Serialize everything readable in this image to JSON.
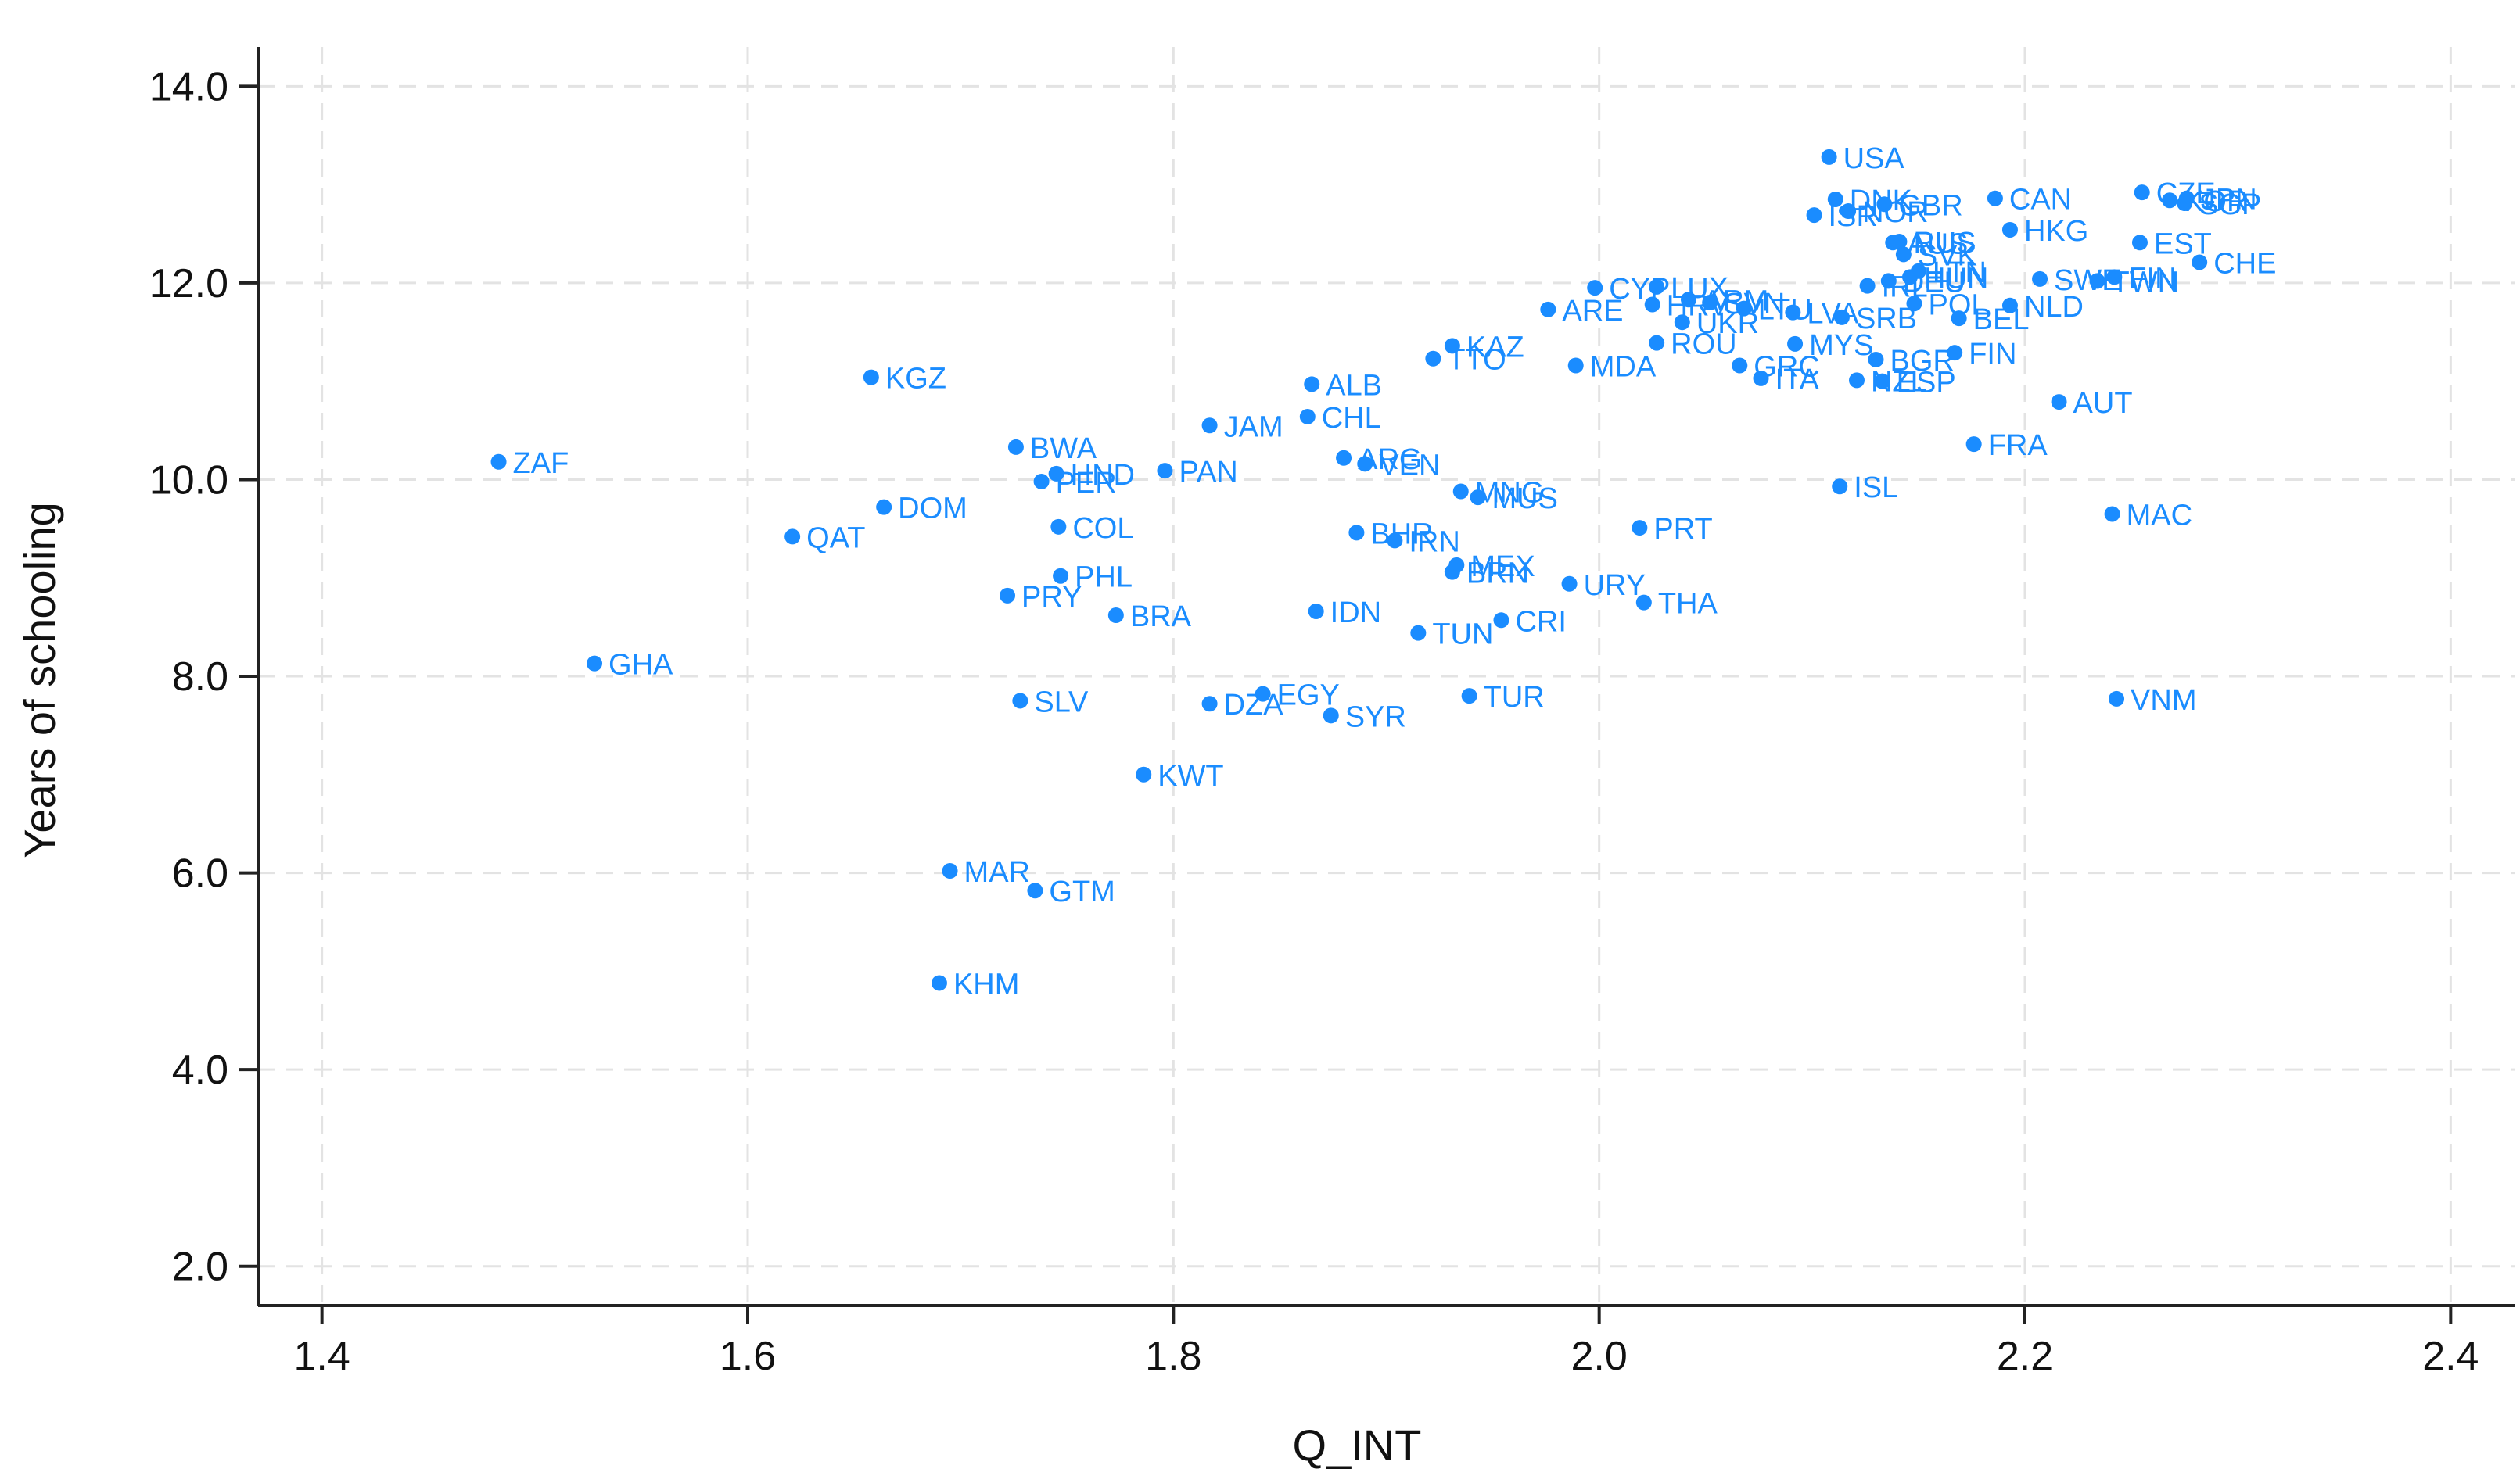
{
  "chart_data": {
    "type": "scatter",
    "xlabel": "Q_INT",
    "ylabel": "Years of schooling",
    "xlim": [
      1.37,
      2.43
    ],
    "ylim": [
      1.6,
      14.4
    ],
    "xticks": [
      1.4,
      1.6,
      1.8,
      2.0,
      2.2,
      2.4
    ],
    "xtick_labels": [
      "1.4",
      "1.6",
      "1.8",
      "2.0",
      "2.2",
      "2.4"
    ],
    "yticks": [
      2,
      4,
      6,
      8,
      10,
      12,
      14
    ],
    "ytick_labels": [
      "2.0",
      "4.0",
      "6.0",
      "8.0",
      "10.0",
      "12.0",
      "14.0"
    ],
    "grid": true,
    "marker_color": "#1a8cff",
    "points": [
      {
        "label": "ZAF",
        "x": 1.483,
        "y": 10.18
      },
      {
        "label": "GHA",
        "x": 1.528,
        "y": 8.13
      },
      {
        "label": "QAT",
        "x": 1.621,
        "y": 9.42
      },
      {
        "label": "KGZ",
        "x": 1.658,
        "y": 11.04
      },
      {
        "label": "DOM",
        "x": 1.664,
        "y": 9.72
      },
      {
        "label": "KHM",
        "x": 1.69,
        "y": 4.88
      },
      {
        "label": "MAR",
        "x": 1.695,
        "y": 6.02
      },
      {
        "label": "PRY",
        "x": 1.722,
        "y": 8.82
      },
      {
        "label": "BWA",
        "x": 1.726,
        "y": 10.33
      },
      {
        "label": "SLV",
        "x": 1.728,
        "y": 7.75
      },
      {
        "label": "GTM",
        "x": 1.735,
        "y": 5.82
      },
      {
        "label": "PER",
        "x": 1.738,
        "y": 9.98
      },
      {
        "label": "HND",
        "x": 1.745,
        "y": 10.06
      },
      {
        "label": "COL",
        "x": 1.746,
        "y": 9.52
      },
      {
        "label": "PHL",
        "x": 1.747,
        "y": 9.02
      },
      {
        "label": "BRA",
        "x": 1.773,
        "y": 8.62
      },
      {
        "label": "KWT",
        "x": 1.786,
        "y": 7.0
      },
      {
        "label": "PAN",
        "x": 1.796,
        "y": 10.09
      },
      {
        "label": "JAM",
        "x": 1.817,
        "y": 10.55
      },
      {
        "label": "DZA",
        "x": 1.817,
        "y": 7.72
      },
      {
        "label": "EGY",
        "x": 1.842,
        "y": 7.82
      },
      {
        "label": "CHL",
        "x": 1.863,
        "y": 10.64
      },
      {
        "label": "ALB",
        "x": 1.865,
        "y": 10.97
      },
      {
        "label": "IDN",
        "x": 1.867,
        "y": 8.66
      },
      {
        "label": "SYR",
        "x": 1.874,
        "y": 7.6
      },
      {
        "label": "ARG",
        "x": 1.88,
        "y": 10.22
      },
      {
        "label": "BHR",
        "x": 1.886,
        "y": 9.46
      },
      {
        "label": "VEN",
        "x": 1.89,
        "y": 10.16
      },
      {
        "label": "IRN",
        "x": 1.904,
        "y": 9.38
      },
      {
        "label": "TUN",
        "x": 1.915,
        "y": 8.44
      },
      {
        "label": "TTO",
        "x": 1.922,
        "y": 11.23
      },
      {
        "label": "KAZ",
        "x": 1.931,
        "y": 11.36
      },
      {
        "label": "BRN",
        "x": 1.931,
        "y": 9.06
      },
      {
        "label": "MEX",
        "x": 1.933,
        "y": 9.13
      },
      {
        "label": "MNG",
        "x": 1.935,
        "y": 9.88
      },
      {
        "label": "MUS",
        "x": 1.943,
        "y": 9.82
      },
      {
        "label": "TUR",
        "x": 1.939,
        "y": 7.8
      },
      {
        "label": "CRI",
        "x": 1.954,
        "y": 8.57
      },
      {
        "label": "ARE",
        "x": 1.976,
        "y": 11.73
      },
      {
        "label": "MDA",
        "x": 1.989,
        "y": 11.16
      },
      {
        "label": "URY",
        "x": 1.986,
        "y": 8.94
      },
      {
        "label": "CYP",
        "x": 1.998,
        "y": 11.95
      },
      {
        "label": "PRT",
        "x": 2.019,
        "y": 9.51
      },
      {
        "label": "THA",
        "x": 2.021,
        "y": 8.75
      },
      {
        "label": "ROU",
        "x": 2.027,
        "y": 11.39
      },
      {
        "label": "HRV",
        "x": 2.025,
        "y": 11.78
      },
      {
        "label": "LUX",
        "x": 2.027,
        "y": 11.96
      },
      {
        "label": "UKR",
        "x": 2.039,
        "y": 11.6
      },
      {
        "label": "ARM",
        "x": 2.042,
        "y": 11.83
      },
      {
        "label": "SVN",
        "x": 2.052,
        "y": 11.8
      },
      {
        "label": "GRC",
        "x": 2.066,
        "y": 11.16
      },
      {
        "label": "LTU",
        "x": 2.068,
        "y": 11.74
      },
      {
        "label": "ITA",
        "x": 2.076,
        "y": 11.03
      },
      {
        "label": "LVA",
        "x": 2.091,
        "y": 11.7
      },
      {
        "label": "MYS",
        "x": 2.092,
        "y": 11.38
      },
      {
        "label": "ISR",
        "x": 2.101,
        "y": 12.69
      },
      {
        "label": "USA",
        "x": 2.108,
        "y": 13.28
      },
      {
        "label": "DNK",
        "x": 2.111,
        "y": 12.85
      },
      {
        "label": "ISL",
        "x": 2.113,
        "y": 9.93
      },
      {
        "label": "SRB",
        "x": 2.114,
        "y": 11.65
      },
      {
        "label": "NOR",
        "x": 2.117,
        "y": 12.73
      },
      {
        "label": "NZL",
        "x": 2.121,
        "y": 11.01
      },
      {
        "label": "IRL",
        "x": 2.126,
        "y": 11.97
      },
      {
        "label": "BGR",
        "x": 2.13,
        "y": 11.22
      },
      {
        "label": "ESP",
        "x": 2.133,
        "y": 11.0
      },
      {
        "label": "GBR",
        "x": 2.134,
        "y": 12.8
      },
      {
        "label": "DEU",
        "x": 2.136,
        "y": 12.02
      },
      {
        "label": "AUS",
        "x": 2.138,
        "y": 12.41
      },
      {
        "label": "RUS",
        "x": 2.141,
        "y": 12.42
      },
      {
        "label": "SVK",
        "x": 2.143,
        "y": 12.29
      },
      {
        "label": "HUN",
        "x": 2.146,
        "y": 12.06
      },
      {
        "label": "LTN",
        "x": 2.15,
        "y": 12.12
      },
      {
        "label": "POL",
        "x": 2.148,
        "y": 11.79
      },
      {
        "label": "FIN",
        "x": 2.167,
        "y": 11.29
      },
      {
        "label": "BEL",
        "x": 2.169,
        "y": 11.64
      },
      {
        "label": "FRA",
        "x": 2.176,
        "y": 10.36
      },
      {
        "label": "CAN",
        "x": 2.186,
        "y": 12.86
      },
      {
        "label": "HKG",
        "x": 2.193,
        "y": 12.54
      },
      {
        "label": "NLD",
        "x": 2.193,
        "y": 11.77
      },
      {
        "label": "SWE",
        "x": 2.207,
        "y": 12.04
      },
      {
        "label": "AUT",
        "x": 2.216,
        "y": 10.79
      },
      {
        "label": "TWN",
        "x": 2.234,
        "y": 12.02
      },
      {
        "label": "FIN2",
        "x": 2.242,
        "y": 12.06
      },
      {
        "label": "MAC",
        "x": 2.241,
        "y": 9.65
      },
      {
        "label": "VNM",
        "x": 2.243,
        "y": 7.77
      },
      {
        "label": "EST",
        "x": 2.254,
        "y": 12.41
      },
      {
        "label": "CZE",
        "x": 2.255,
        "y": 12.92
      },
      {
        "label": "KOR",
        "x": 2.268,
        "y": 12.84
      },
      {
        "label": "SGP",
        "x": 2.275,
        "y": 12.81
      },
      {
        "label": "JPN",
        "x": 2.276,
        "y": 12.86
      },
      {
        "label": "CHE",
        "x": 2.282,
        "y": 12.21
      }
    ]
  }
}
